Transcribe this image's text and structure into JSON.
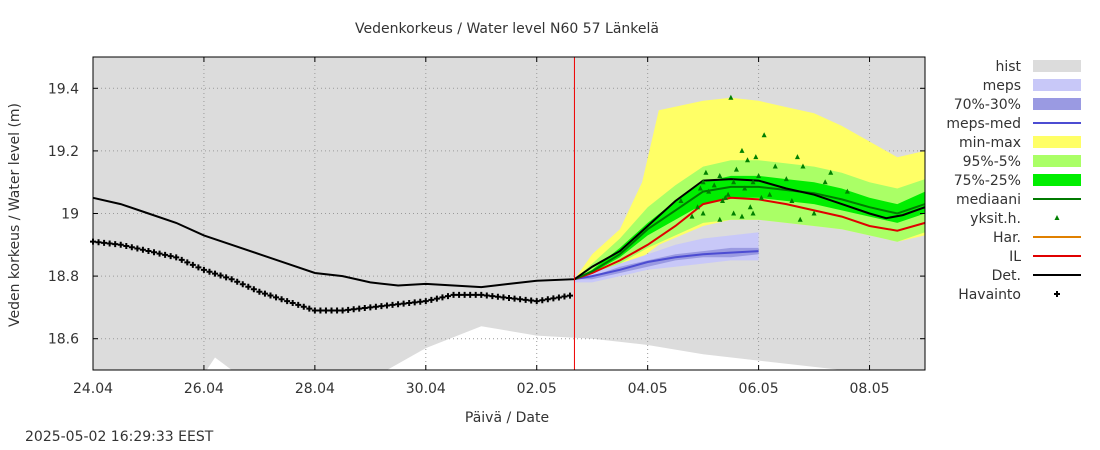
{
  "timestamp": "2025-05-02 16:29:33 EEST",
  "colors": {
    "hist": "#dcdcdc",
    "meps": "#c8c8f8",
    "meps_70_30": "#9a9ae2",
    "meps_med": "#4c4cd2",
    "min_max": "#ffff66",
    "p95_5": "#aaff66",
    "p75_25": "#00ee00",
    "mediaani": "#007a00",
    "yksit": "#008000",
    "har": "#e08000",
    "il": "#e00000",
    "det": "#000000",
    "havainto": "#000000",
    "now_line": "#ee0000"
  },
  "chart_data": {
    "type": "line",
    "title": "Vedenkorkeus / Water level   N60 57 Länkelä",
    "xlabel": "Päivä / Date",
    "ylabel": "Veden korkeus / Water level (m)",
    "x_unit": "day of year 2025",
    "xlim": [
      114,
      129
    ],
    "ylim": [
      18.5,
      19.5
    ],
    "xticks": [
      {
        "x": 114,
        "label": "24.04"
      },
      {
        "x": 116,
        "label": "26.04"
      },
      {
        "x": 118,
        "label": "28.04"
      },
      {
        "x": 120,
        "label": "30.04"
      },
      {
        "x": 122,
        "label": "02.05"
      },
      {
        "x": 124,
        "label": "04.05"
      },
      {
        "x": 126,
        "label": "06.05"
      },
      {
        "x": 128,
        "label": "08.05"
      }
    ],
    "yticks": [
      {
        "y": 18.6,
        "label": "18.6"
      },
      {
        "y": 18.8,
        "label": "18.8"
      },
      {
        "y": 19.0,
        "label": "19"
      },
      {
        "y": 19.2,
        "label": "19.2"
      },
      {
        "y": 19.4,
        "label": "19.4"
      }
    ],
    "grid": true,
    "legend_position": "right",
    "now_x": 122.68,
    "legend": [
      {
        "label": "hist",
        "key": "hist",
        "kind": "band"
      },
      {
        "label": "meps",
        "key": "meps",
        "kind": "band"
      },
      {
        "label": "70%-30%",
        "key": "meps_70_30",
        "kind": "band"
      },
      {
        "label": "meps-med",
        "key": "meps_med",
        "kind": "line"
      },
      {
        "label": "min-max",
        "key": "min_max",
        "kind": "band"
      },
      {
        "label": "95%-5%",
        "key": "p95_5",
        "kind": "band"
      },
      {
        "label": "75%-25%",
        "key": "p75_25",
        "kind": "band"
      },
      {
        "label": "mediaani",
        "key": "mediaani",
        "kind": "line"
      },
      {
        "label": "yksit.h.",
        "key": "yksit",
        "kind": "triangle"
      },
      {
        "label": "Har.",
        "key": "har",
        "kind": "line"
      },
      {
        "label": "IL",
        "key": "il",
        "kind": "line"
      },
      {
        "label": "Det.",
        "key": "det",
        "kind": "line"
      },
      {
        "label": "Havainto",
        "key": "havainto",
        "kind": "plus"
      }
    ],
    "hist_lower": [
      [
        114.0,
        18.5
      ],
      [
        116.05,
        18.5
      ],
      [
        116.2,
        18.54
      ],
      [
        116.5,
        18.5
      ],
      [
        119.3,
        18.5
      ],
      [
        120.0,
        18.57
      ],
      [
        121.0,
        18.64
      ],
      [
        122.0,
        18.61
      ],
      [
        123.0,
        18.6
      ],
      [
        124.0,
        18.58
      ],
      [
        125.0,
        18.55
      ],
      [
        126.0,
        18.53
      ],
      [
        127.0,
        18.51
      ],
      [
        127.5,
        18.5
      ],
      [
        129.0,
        18.5
      ]
    ],
    "meps_band": {
      "x": [
        122.68,
        123.0,
        123.5,
        124.0,
        124.5,
        125.0,
        125.5,
        126.0
      ],
      "upper": [
        18.79,
        18.81,
        18.84,
        18.87,
        18.9,
        18.92,
        18.93,
        18.94
      ],
      "lower": [
        18.78,
        18.78,
        18.8,
        18.82,
        18.83,
        18.84,
        18.85,
        18.85
      ]
    },
    "meps_70_30": {
      "x": [
        122.68,
        123.0,
        123.5,
        124.0,
        124.5,
        125.0,
        125.5,
        126.0
      ],
      "upper": [
        18.79,
        18.8,
        18.83,
        18.85,
        18.87,
        18.88,
        18.89,
        18.89
      ],
      "lower": [
        18.79,
        18.79,
        18.81,
        18.83,
        18.85,
        18.86,
        18.86,
        18.87
      ]
    },
    "meps_med": [
      [
        122.68,
        18.79
      ],
      [
        123.0,
        18.8
      ],
      [
        123.5,
        18.82
      ],
      [
        124.0,
        18.845
      ],
      [
        124.5,
        18.86
      ],
      [
        125.0,
        18.87
      ],
      [
        125.5,
        18.875
      ],
      [
        126.0,
        18.88
      ]
    ],
    "min_max": {
      "x": [
        122.68,
        123.0,
        123.5,
        123.9,
        124.2,
        125.0,
        125.5,
        126.0,
        126.5,
        127.0,
        127.5,
        128.0,
        128.5,
        129.0
      ],
      "upper": [
        18.79,
        18.87,
        18.95,
        19.1,
        19.33,
        19.36,
        19.37,
        19.36,
        19.34,
        19.32,
        19.28,
        19.23,
        19.18,
        19.2
      ],
      "lower": [
        18.79,
        18.79,
        18.82,
        18.86,
        18.9,
        18.96,
        18.98,
        18.98,
        18.97,
        18.96,
        18.95,
        18.93,
        18.91,
        18.93
      ]
    },
    "p95_5": {
      "x": [
        122.68,
        123.0,
        123.5,
        124.0,
        124.5,
        125.0,
        125.5,
        126.0,
        126.5,
        127.0,
        127.5,
        128.0,
        128.5,
        129.0
      ],
      "upper": [
        18.79,
        18.84,
        18.92,
        19.02,
        19.09,
        19.15,
        19.17,
        19.17,
        19.16,
        19.15,
        19.13,
        19.1,
        19.08,
        19.11
      ],
      "lower": [
        18.79,
        18.8,
        18.84,
        18.89,
        18.93,
        18.97,
        18.98,
        18.98,
        18.97,
        18.96,
        18.95,
        18.93,
        18.91,
        18.94
      ]
    },
    "p75_25": {
      "x": [
        122.68,
        123.0,
        123.5,
        124.0,
        124.5,
        125.0,
        125.5,
        126.0,
        126.5,
        127.0,
        127.5,
        128.0,
        128.5,
        129.0
      ],
      "upper": [
        18.79,
        18.82,
        18.89,
        18.97,
        19.04,
        19.1,
        19.12,
        19.12,
        19.11,
        19.1,
        19.08,
        19.05,
        19.03,
        19.07
      ],
      "lower": [
        18.79,
        18.81,
        18.86,
        18.93,
        18.98,
        19.03,
        19.05,
        19.05,
        19.04,
        19.03,
        19.01,
        18.99,
        18.97,
        19.0
      ]
    },
    "mediaani": [
      [
        122.68,
        18.79
      ],
      [
        123.0,
        18.815
      ],
      [
        123.5,
        18.87
      ],
      [
        124.0,
        18.95
      ],
      [
        124.5,
        19.01
      ],
      [
        125.0,
        19.07
      ],
      [
        125.5,
        19.085
      ],
      [
        126.0,
        19.085
      ],
      [
        126.5,
        19.075
      ],
      [
        127.0,
        19.065
      ],
      [
        127.5,
        19.045
      ],
      [
        128.0,
        19.02
      ],
      [
        128.5,
        19.0
      ],
      [
        129.0,
        19.03
      ]
    ],
    "il": [
      [
        122.68,
        18.79
      ],
      [
        123.0,
        18.81
      ],
      [
        123.5,
        18.85
      ],
      [
        124.0,
        18.9
      ],
      [
        124.5,
        18.96
      ],
      [
        125.0,
        19.03
      ],
      [
        125.5,
        19.05
      ],
      [
        126.0,
        19.045
      ],
      [
        126.5,
        19.03
      ],
      [
        127.0,
        19.01
      ],
      [
        127.5,
        18.99
      ],
      [
        128.0,
        18.96
      ],
      [
        128.5,
        18.945
      ],
      [
        129.0,
        18.97
      ]
    ],
    "det": [
      [
        114.0,
        19.05
      ],
      [
        114.5,
        19.03
      ],
      [
        115.0,
        19.0
      ],
      [
        115.5,
        18.97
      ],
      [
        116.0,
        18.93
      ],
      [
        116.5,
        18.9
      ],
      [
        117.0,
        18.87
      ],
      [
        117.5,
        18.84
      ],
      [
        118.0,
        18.81
      ],
      [
        118.5,
        18.8
      ],
      [
        119.0,
        18.78
      ],
      [
        119.5,
        18.77
      ],
      [
        120.0,
        18.775
      ],
      [
        120.5,
        18.77
      ],
      [
        121.0,
        18.765
      ],
      [
        121.5,
        18.775
      ],
      [
        122.0,
        18.785
      ],
      [
        122.68,
        18.79
      ],
      [
        123.0,
        18.83
      ],
      [
        123.5,
        18.88
      ],
      [
        124.0,
        18.96
      ],
      [
        124.5,
        19.04
      ],
      [
        125.0,
        19.105
      ],
      [
        125.5,
        19.11
      ],
      [
        126.0,
        19.105
      ],
      [
        126.5,
        19.08
      ],
      [
        127.0,
        19.06
      ],
      [
        127.5,
        19.03
      ],
      [
        128.0,
        19.0
      ],
      [
        128.3,
        18.985
      ],
      [
        128.6,
        18.995
      ],
      [
        129.0,
        19.02
      ]
    ],
    "havainto": [
      [
        114.0,
        18.91
      ],
      [
        114.5,
        18.9
      ],
      [
        115.0,
        18.88
      ],
      [
        115.5,
        18.86
      ],
      [
        116.0,
        18.82
      ],
      [
        116.5,
        18.79
      ],
      [
        117.0,
        18.75
      ],
      [
        117.5,
        18.72
      ],
      [
        118.0,
        18.69
      ],
      [
        118.5,
        18.69
      ],
      [
        119.0,
        18.7
      ],
      [
        119.5,
        18.71
      ],
      [
        120.0,
        18.72
      ],
      [
        120.5,
        18.74
      ],
      [
        121.0,
        18.74
      ],
      [
        121.5,
        18.73
      ],
      [
        122.0,
        18.72
      ],
      [
        122.68,
        18.74
      ]
    ],
    "havainto_step": 0.1,
    "yksit": [
      [
        125.0,
        19.1
      ],
      [
        125.05,
        19.13
      ],
      [
        125.1,
        19.07
      ],
      [
        125.2,
        19.09
      ],
      [
        125.3,
        19.12
      ],
      [
        125.4,
        19.05
      ],
      [
        125.5,
        19.37
      ],
      [
        125.55,
        19.1
      ],
      [
        125.6,
        19.14
      ],
      [
        125.7,
        19.2
      ],
      [
        125.75,
        19.08
      ],
      [
        125.8,
        19.17
      ],
      [
        125.85,
        19.02
      ],
      [
        125.9,
        19.1
      ],
      [
        125.95,
        19.18
      ],
      [
        126.0,
        19.12
      ],
      [
        126.1,
        19.25
      ],
      [
        126.2,
        19.06
      ],
      [
        126.3,
        19.15
      ],
      [
        126.5,
        19.11
      ],
      [
        126.7,
        19.18
      ],
      [
        126.8,
        19.15
      ],
      [
        127.0,
        19.0
      ],
      [
        127.2,
        19.1
      ],
      [
        125.0,
        19.0
      ],
      [
        124.9,
        19.02
      ],
      [
        125.3,
        18.98
      ],
      [
        125.35,
        19.04
      ],
      [
        125.45,
        19.06
      ],
      [
        125.55,
        19.0
      ],
      [
        125.7,
        18.99
      ],
      [
        125.9,
        19.0
      ],
      [
        126.05,
        19.05
      ],
      [
        126.6,
        19.04
      ],
      [
        126.75,
        18.98
      ],
      [
        127.3,
        19.13
      ],
      [
        127.6,
        19.07
      ],
      [
        124.6,
        19.04
      ],
      [
        124.8,
        18.99
      ],
      [
        124.95,
        19.08
      ]
    ]
  }
}
